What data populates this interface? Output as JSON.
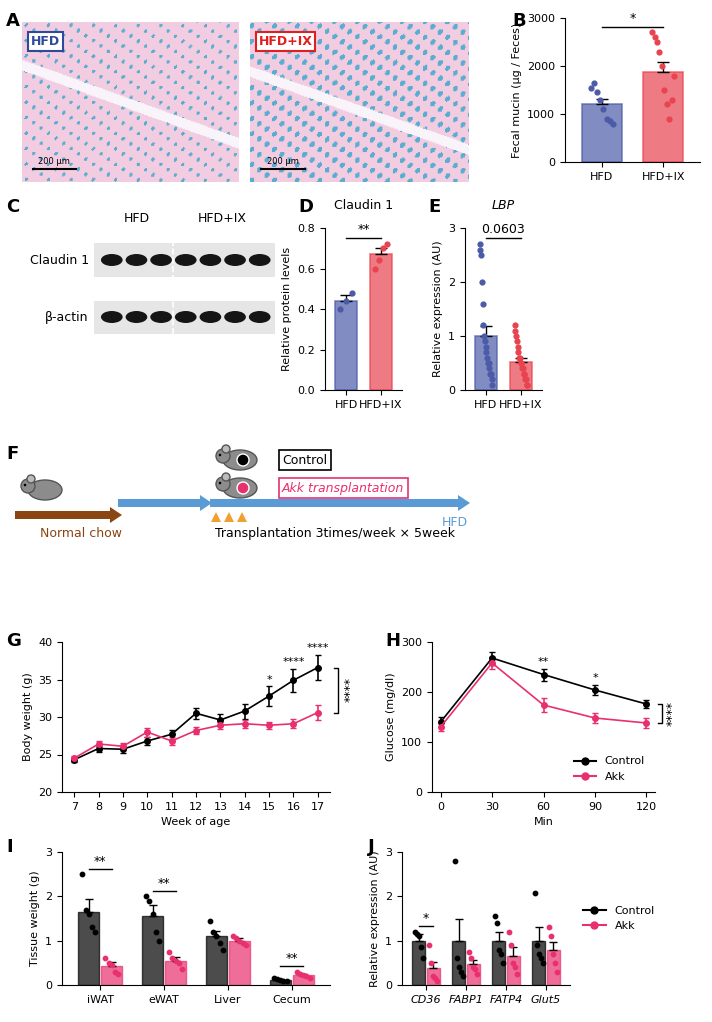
{
  "panel_labels": [
    "A",
    "B",
    "C",
    "D",
    "E",
    "F",
    "G",
    "H",
    "I",
    "J"
  ],
  "images": {
    "panels": [
      {
        "label": "HFD",
        "color": "#2f4a9a"
      },
      {
        "label": "HFD+IX",
        "color": "#e02020"
      }
    ],
    "scale_bar": "200 μm"
  },
  "blot": {
    "rows": [
      "Claudin 1",
      "β-actin"
    ],
    "groups": [
      {
        "label": "HFD",
        "lanes": 3
      },
      {
        "label": "HFD+IX",
        "lanes": 4
      }
    ]
  },
  "schematic": {
    "groups": [
      {
        "label": "Control",
        "color": "#000000"
      },
      {
        "label": "Akk transplantation",
        "color": "#e8306e"
      }
    ],
    "phases": [
      {
        "label": "Normal chow",
        "color": "#8b4513"
      },
      {
        "label": "HFD",
        "color": "#5b9bd5"
      }
    ],
    "note": "Transplantation 3times/week × 5week"
  },
  "chart_data": [
    {
      "type": "bar",
      "categories": [
        "HFD",
        "HFD+IX"
      ],
      "values": [
        1200,
        1880
      ],
      "errors": [
        110,
        200
      ],
      "points": [
        [
          1550,
          1650,
          1450,
          1300,
          1100,
          900,
          850,
          800
        ],
        [
          2700,
          2600,
          2500,
          2300,
          2000,
          1500,
          1200,
          900,
          1300,
          1800
        ]
      ],
      "colors": [
        "#4b5ba8",
        "#e8434f"
      ],
      "ylabel": "Fecal mucin (μg / Feces)",
      "ylim": [
        0,
        3000
      ],
      "yticks": [
        0,
        1000,
        2000,
        3000
      ],
      "annotations": [
        "*"
      ]
    },
    {
      "type": "bar",
      "title": "Claudin 1",
      "categories": [
        "HFD",
        "HFD+IX"
      ],
      "values": [
        0.44,
        0.67
      ],
      "errors": [
        0.03,
        0.03
      ],
      "points": [
        [
          0.4,
          0.44,
          0.48
        ],
        [
          0.6,
          0.64,
          0.7,
          0.72
        ]
      ],
      "colors": [
        "#4b5ba8",
        "#e8434f"
      ],
      "ylabel": "Relative protein levels",
      "ylim": [
        0.0,
        0.8
      ],
      "yticks": [
        0.0,
        0.2,
        0.4,
        0.6,
        0.8
      ],
      "annotations": [
        "**"
      ]
    },
    {
      "type": "bar",
      "title": "LBP",
      "categories": [
        "HFD",
        "HFD+IX"
      ],
      "values": [
        1.0,
        0.52
      ],
      "errors": [
        0.18,
        0.08
      ],
      "points": [
        [
          2.7,
          2.6,
          2.5,
          2.0,
          1.6,
          1.2,
          1.0,
          0.9,
          0.8,
          0.7,
          0.6,
          0.5,
          0.5,
          0.4,
          0.3,
          0.3,
          0.2,
          0.1
        ],
        [
          1.2,
          1.1,
          1.0,
          0.9,
          0.8,
          0.7,
          0.6,
          0.6,
          0.5,
          0.5,
          0.4,
          0.4,
          0.3,
          0.3,
          0.2,
          0.2,
          0.1,
          0.1
        ]
      ],
      "colors": [
        "#4b5ba8",
        "#e8434f"
      ],
      "ylabel": "Relative expression (AU)",
      "ylim": [
        0,
        3
      ],
      "yticks": [
        0,
        1,
        2,
        3
      ],
      "annotations": [
        "0.0603"
      ]
    },
    {
      "type": "line",
      "x": [
        7,
        8,
        9,
        10,
        11,
        12,
        13,
        14,
        15,
        16,
        17
      ],
      "xlabel": "Week of age",
      "ylabel": "Body weight (g)",
      "xlim": [
        6.5,
        17.5
      ],
      "xticks": [
        7,
        8,
        9,
        10,
        11,
        12,
        13,
        14,
        15,
        16,
        17
      ],
      "ylim": [
        20,
        40
      ],
      "yticks": [
        20,
        25,
        30,
        35,
        40
      ],
      "marker": "o",
      "series": [
        {
          "name": "Control",
          "color": "#000000",
          "values": [
            24.3,
            25.8,
            25.7,
            26.8,
            27.7,
            30.5,
            29.6,
            30.8,
            32.8,
            34.9,
            36.6
          ],
          "errors": [
            0.3,
            0.4,
            0.5,
            0.5,
            0.6,
            0.7,
            0.8,
            1.0,
            1.3,
            1.5,
            1.7
          ]
        },
        {
          "name": "Akk",
          "color": "#e8306e",
          "values": [
            24.5,
            26.4,
            26.1,
            28.0,
            26.8,
            28.2,
            28.9,
            29.1,
            28.9,
            29.1,
            30.6
          ],
          "errors": [
            0.3,
            0.4,
            0.5,
            0.6,
            0.5,
            0.5,
            0.5,
            0.5,
            0.5,
            0.6,
            1.0
          ]
        }
      ],
      "annotations": [
        null,
        null,
        null,
        null,
        null,
        null,
        null,
        null,
        "*",
        "****",
        "****"
      ],
      "group_annotation": "****"
    },
    {
      "type": "line",
      "x": [
        0,
        30,
        60,
        90,
        120
      ],
      "xlabel": "Min",
      "ylabel": "Glucose (mg/dl)",
      "xlim": [
        -5,
        125
      ],
      "xticks": [
        0,
        30,
        60,
        90,
        120
      ],
      "ylim": [
        0,
        300
      ],
      "yticks": [
        0,
        100,
        200,
        300
      ],
      "marker": "o",
      "series": [
        {
          "name": "Control",
          "color": "#000000",
          "values": [
            140,
            268,
            235,
            204,
            176
          ],
          "errors": [
            10,
            12,
            12,
            10,
            8
          ]
        },
        {
          "name": "Akk",
          "color": "#e8306e",
          "values": [
            130,
            258,
            174,
            148,
            138
          ],
          "errors": [
            8,
            12,
            14,
            10,
            10
          ]
        }
      ],
      "annotations": [
        null,
        null,
        "**",
        "*",
        null
      ],
      "group_annotation": "****",
      "legend": "lower right"
    },
    {
      "type": "bar",
      "categories": [
        "iWAT",
        "eWAT",
        "Liver",
        "Cecum"
      ],
      "ylabel": "Tissue weight (g)",
      "ylim": [
        0,
        3
      ],
      "yticks": [
        0,
        1,
        2,
        3
      ],
      "series": [
        {
          "name": "Control",
          "color": "#000000",
          "values": [
            1.65,
            1.55,
            1.1,
            0.12
          ],
          "errors": [
            0.28,
            0.25,
            0.12,
            0.02
          ],
          "points": [
            [
              2.5,
              1.7,
              1.6,
              1.3,
              1.2
            ],
            [
              2.0,
              1.9,
              1.6,
              1.2,
              1.0
            ],
            [
              1.45,
              1.2,
              1.1,
              0.95,
              0.8
            ],
            [
              0.15,
              0.13,
              0.12,
              0.1,
              0.1
            ]
          ]
        },
        {
          "name": "Akk",
          "color": "#e8306e",
          "values": [
            0.42,
            0.55,
            1.0,
            0.22
          ],
          "errors": [
            0.1,
            0.08,
            0.05,
            0.03
          ],
          "points": [
            [
              0.6,
              0.5,
              0.45,
              0.3,
              0.25
            ],
            [
              0.75,
              0.6,
              0.55,
              0.5,
              0.35
            ],
            [
              1.1,
              1.05,
              1.0,
              0.95,
              0.9
            ],
            [
              0.3,
              0.25,
              0.22,
              0.2,
              0.15
            ]
          ]
        }
      ],
      "annotations": [
        "**",
        "**",
        null,
        "**"
      ]
    },
    {
      "type": "bar",
      "categories": [
        "CD36",
        "FABP1",
        "FATP4",
        "Glut5"
      ],
      "ylabel": "Relative expression (AU)",
      "ylim": [
        0,
        3
      ],
      "yticks": [
        0,
        1,
        2,
        3
      ],
      "series": [
        {
          "name": "Control",
          "color": "#000000",
          "values": [
            1.0,
            1.0,
            1.0,
            1.0
          ],
          "errors": [
            0.15,
            0.48,
            0.2,
            0.3
          ],
          "points": [
            [
              1.2,
              1.15,
              1.1,
              0.85,
              0.6
            ],
            [
              2.8,
              0.6,
              0.4,
              0.3,
              0.2
            ],
            [
              1.55,
              1.4,
              0.8,
              0.7,
              0.5
            ],
            [
              2.07,
              0.9,
              0.7,
              0.6,
              0.5
            ]
          ]
        },
        {
          "name": "Akk",
          "color": "#e8306e",
          "values": [
            0.38,
            0.47,
            0.65,
            0.78
          ],
          "errors": [
            0.15,
            0.1,
            0.2,
            0.18
          ],
          "points": [
            [
              0.9,
              0.5,
              0.2,
              0.15,
              0.1
            ],
            [
              0.75,
              0.6,
              0.4,
              0.35,
              0.25
            ],
            [
              1.2,
              0.9,
              0.5,
              0.4,
              0.25
            ],
            [
              1.3,
              1.1,
              0.7,
              0.5,
              0.3
            ]
          ]
        }
      ],
      "annotations": [
        "*",
        null,
        null,
        null
      ],
      "legend": "right"
    }
  ]
}
